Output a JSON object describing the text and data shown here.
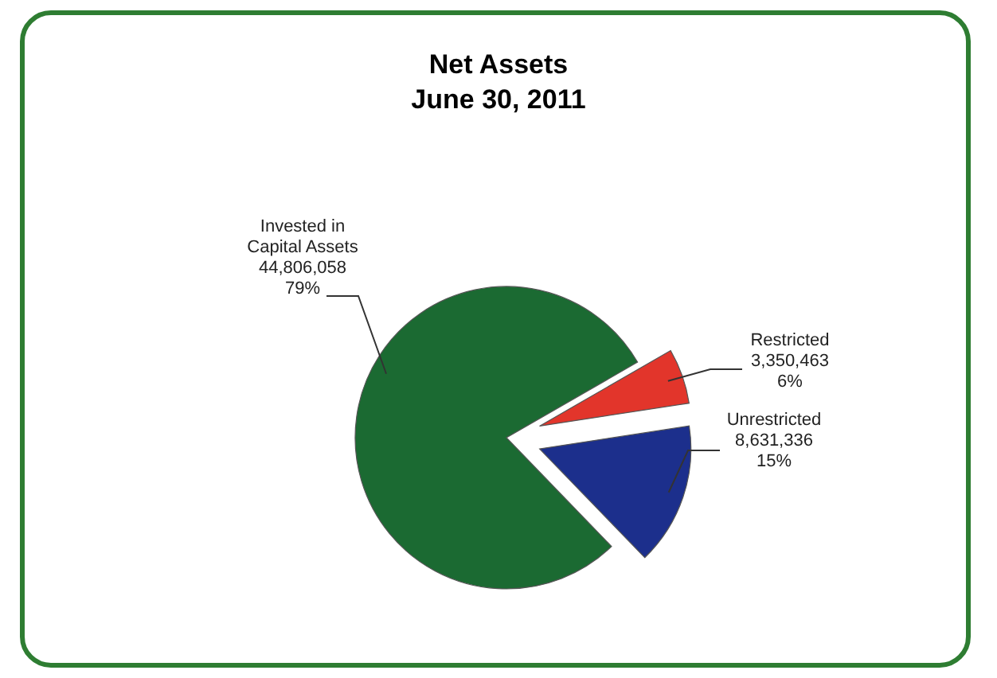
{
  "chart_data": {
    "type": "pie",
    "title": "Net Assets",
    "subtitle": "June 30, 2011",
    "categories": [
      "Invested in\nCapital Assets",
      "Restricted",
      "Unrestricted"
    ],
    "values": [
      44806058,
      3350463,
      8631336
    ],
    "colors": [
      "#1b6a32",
      "#e2352b",
      "#1c2f8c"
    ],
    "value_labels": [
      "44,806,058\n79%",
      "3,350,463\n6%",
      "8,631,336\n15%"
    ]
  }
}
